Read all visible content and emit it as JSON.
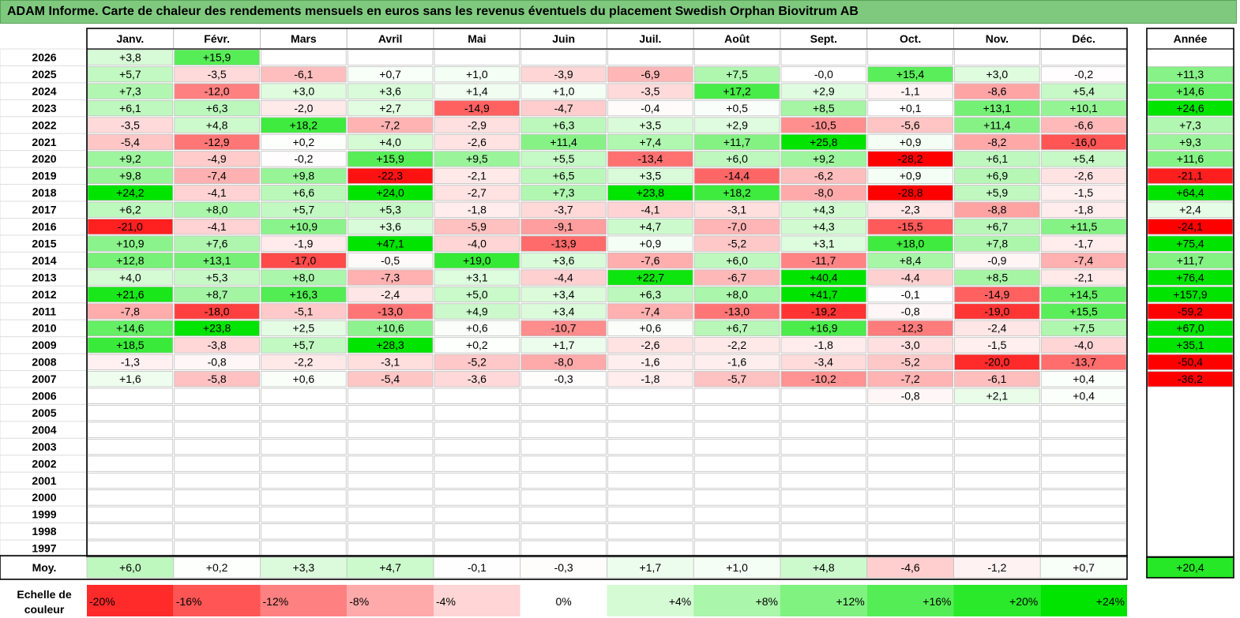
{
  "title": "ADAM Informe. Carte de chaleur des rendements mensuels en euros sans les revenus éventuels du placement Swedish Orphan Biovitrum AB",
  "chart_data": {
    "type": "heatmap",
    "months": [
      "Janv.",
      "Févr.",
      "Mars",
      "Avril",
      "Mai",
      "Juin",
      "Juil.",
      "Août",
      "Sept.",
      "Oct.",
      "Nov.",
      "Déc."
    ],
    "year_header": "Année",
    "years": [
      "2026",
      "2025",
      "2024",
      "2023",
      "2022",
      "2021",
      "2020",
      "2019",
      "2018",
      "2017",
      "2016",
      "2015",
      "2014",
      "2013",
      "2012",
      "2011",
      "2010",
      "2009",
      "2008",
      "2007",
      "2006",
      "2005",
      "2004",
      "2003",
      "2002",
      "2001",
      "2000",
      "1999",
      "1998",
      "1997"
    ],
    "values": [
      [
        "+3,8",
        "+15,9",
        "",
        "",
        "",
        "",
        "",
        "",
        "",
        "",
        "",
        ""
      ],
      [
        "+5,7",
        "-3,5",
        "-6,1",
        "+0,7",
        "+1,0",
        "-3,9",
        "-6,9",
        "+7,5",
        "-0,0",
        "+15,4",
        "+3,0",
        "-0,2"
      ],
      [
        "+7,3",
        "-12,0",
        "+3,0",
        "+3,6",
        "+1,4",
        "+1,0",
        "-3,5",
        "+17,2",
        "+2,9",
        "-1,1",
        "-8,6",
        "+5,4"
      ],
      [
        "+6,1",
        "+6,3",
        "-2,0",
        "+2,7",
        "-14,9",
        "-4,7",
        "-0,4",
        "+0,5",
        "+8,5",
        "+0,1",
        "+13,1",
        "+10,1"
      ],
      [
        "-3,5",
        "+4,8",
        "+18,2",
        "-7,2",
        "-2,9",
        "+6,3",
        "+3,5",
        "+2,9",
        "-10,5",
        "-5,6",
        "+11,4",
        "-6,6"
      ],
      [
        "-5,4",
        "-12,9",
        "+0,2",
        "+4,0",
        "-2,6",
        "+11,4",
        "+7,4",
        "+11,7",
        "+25,8",
        "+0,9",
        "-8,2",
        "-16,0"
      ],
      [
        "+9,2",
        "-4,9",
        "-0,2",
        "+15,9",
        "+9,5",
        "+5,5",
        "-13,4",
        "+6,0",
        "+9,2",
        "-28,2",
        "+6,1",
        "+5,4"
      ],
      [
        "+9,8",
        "-7,4",
        "+9,8",
        "-22,3",
        "-2,1",
        "+6,5",
        "+3,5",
        "-14,4",
        "-6,2",
        "+0,9",
        "+6,9",
        "-2,6"
      ],
      [
        "+24,2",
        "-4,1",
        "+6,6",
        "+24,0",
        "-2,7",
        "+7,3",
        "+23,8",
        "+18,2",
        "-8,0",
        "-28,8",
        "+5,9",
        "-1,5"
      ],
      [
        "+6,2",
        "+8,0",
        "+5,7",
        "+5,3",
        "-1,8",
        "-3,7",
        "-4,1",
        "-3,1",
        "+4,3",
        "-2,3",
        "-8,8",
        "-1,8"
      ],
      [
        "-21,0",
        "-4,1",
        "+10,9",
        "+3,6",
        "-5,9",
        "-9,1",
        "+4,7",
        "-7,0",
        "+4,3",
        "-15,5",
        "+6,7",
        "+11,5"
      ],
      [
        "+10,9",
        "+7,6",
        "-1,9",
        "+47,1",
        "-4,0",
        "-13,9",
        "+0,9",
        "-5,2",
        "+3,1",
        "+18,0",
        "+7,8",
        "-1,7"
      ],
      [
        "+12,8",
        "+13,1",
        "-17,0",
        "-0,5",
        "+19,0",
        "+3,6",
        "-7,6",
        "+6,0",
        "-11,7",
        "+8,4",
        "-0,9",
        "-7,4"
      ],
      [
        "+4,0",
        "+5,3",
        "+8,0",
        "-7,3",
        "+3,1",
        "-4,4",
        "+22,7",
        "-6,7",
        "+40,4",
        "-4,4",
        "+8,5",
        "-2,1"
      ],
      [
        "+21,6",
        "+8,7",
        "+16,3",
        "-2,4",
        "+5,0",
        "+3,4",
        "+6,3",
        "+8,0",
        "+41,7",
        "-0,1",
        "-14,9",
        "+14,5"
      ],
      [
        "-7,8",
        "-18,0",
        "-5,1",
        "-13,0",
        "+4,9",
        "+3,4",
        "-7,4",
        "-13,0",
        "-19,2",
        "-0,8",
        "-19,0",
        "+15,5"
      ],
      [
        "+14,6",
        "+23,8",
        "+2,5",
        "+10,6",
        "+0,6",
        "-10,7",
        "+0,6",
        "+6,7",
        "+16,9",
        "-12,3",
        "-2,4",
        "+7,5"
      ],
      [
        "+18,5",
        "-3,8",
        "+5,7",
        "+28,3",
        "+0,2",
        "+1,7",
        "-2,6",
        "-2,2",
        "-1,8",
        "-3,0",
        "-1,5",
        "-4,0"
      ],
      [
        "-1,3",
        "-0,8",
        "-2,2",
        "-3,1",
        "-5,2",
        "-8,0",
        "-1,6",
        "-1,6",
        "-3,4",
        "-5,2",
        "-20,0",
        "-13,7"
      ],
      [
        "+1,6",
        "-5,8",
        "+0,6",
        "-5,4",
        "-3,6",
        "-0,3",
        "-1,8",
        "-5,7",
        "-10,2",
        "-7,2",
        "-6,1",
        "+0,4"
      ],
      [
        "",
        "",
        "",
        "",
        "",
        "",
        "",
        "",
        "",
        "-0,8",
        "+2,1",
        "+0,4"
      ],
      [
        "",
        "",
        "",
        "",
        "",
        "",
        "",
        "",
        "",
        "",
        "",
        ""
      ],
      [
        "",
        "",
        "",
        "",
        "",
        "",
        "",
        "",
        "",
        "",
        "",
        ""
      ],
      [
        "",
        "",
        "",
        "",
        "",
        "",
        "",
        "",
        "",
        "",
        "",
        ""
      ],
      [
        "",
        "",
        "",
        "",
        "",
        "",
        "",
        "",
        "",
        "",
        "",
        ""
      ],
      [
        "",
        "",
        "",
        "",
        "",
        "",
        "",
        "",
        "",
        "",
        "",
        ""
      ],
      [
        "",
        "",
        "",
        "",
        "",
        "",
        "",
        "",
        "",
        "",
        "",
        ""
      ],
      [
        "",
        "",
        "",
        "",
        "",
        "",
        "",
        "",
        "",
        "",
        "",
        ""
      ],
      [
        "",
        "",
        "",
        "",
        "",
        "",
        "",
        "",
        "",
        "",
        "",
        ""
      ],
      [
        "",
        "",
        "",
        "",
        "",
        "",
        "",
        "",
        "",
        "",
        "",
        ""
      ]
    ],
    "annual": [
      "",
      "+11,3",
      "+14,6",
      "+24,6",
      "+7,3",
      "+9,3",
      "+11,6",
      "-21,1",
      "+64,4",
      "+2,4",
      "-24,1",
      "+75,4",
      "+11,7",
      "+76,4",
      "+157,9",
      "-59,2",
      "+67,0",
      "+35,1",
      "-50,4",
      "-36,2",
      "",
      "",
      "",
      "",
      "",
      "",
      "",
      "",
      "",
      ""
    ],
    "average_label": "Moy.",
    "averages": [
      "+6,0",
      "+0,2",
      "+3,3",
      "+4,7",
      "-0,1",
      "-0,3",
      "+1,7",
      "+1,0",
      "+4,8",
      "-4,6",
      "-1,2",
      "+0,7"
    ],
    "average_annual": "+20,4",
    "scale_label": [
      "Echelle de",
      "couleur"
    ],
    "scale": [
      {
        "label": "-20%",
        "value": -20
      },
      {
        "label": "-16%",
        "value": -16
      },
      {
        "label": "-12%",
        "value": -12
      },
      {
        "label": "-8%",
        "value": -8
      },
      {
        "label": "-4%",
        "value": -4
      },
      {
        "label": "0%",
        "value": 0
      },
      {
        "label": "+4%",
        "value": 4
      },
      {
        "label": "+8%",
        "value": 8
      },
      {
        "label": "+12%",
        "value": 12
      },
      {
        "label": "+16%",
        "value": 16
      },
      {
        "label": "+20%",
        "value": 20
      },
      {
        "label": "+24%",
        "value": 24
      }
    ],
    "colors": {
      "negative_max": "#ff0000",
      "positive_max": "#00e400",
      "neutral": "#ffffff",
      "title_bg": "#7fc97f",
      "grid": "#c0c0c0",
      "border": "#000000"
    }
  }
}
